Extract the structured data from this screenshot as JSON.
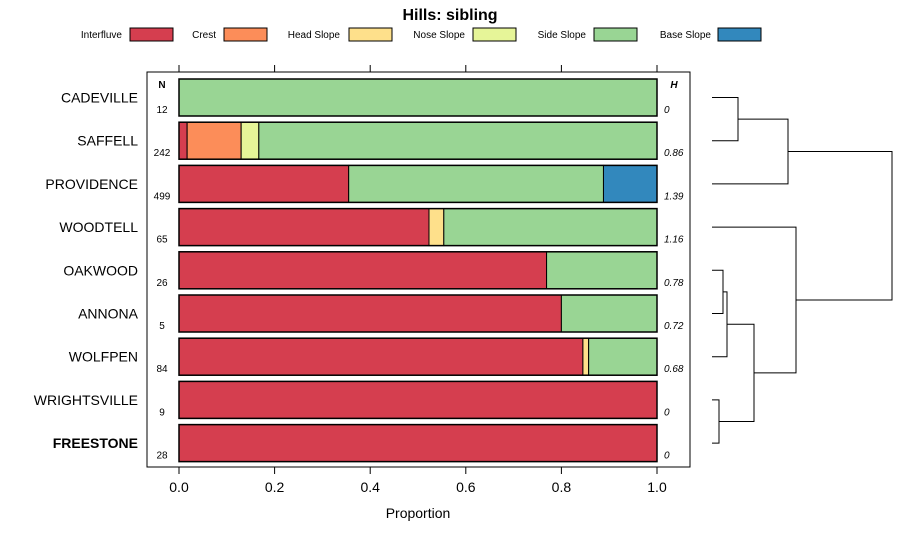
{
  "chart_data": {
    "type": "bar",
    "orientation": "horizontal",
    "stacked": true,
    "title": "Hills: sibling",
    "xlabel": "Proportion",
    "ylabel": "",
    "xlim": [
      0,
      1
    ],
    "xticks": [
      "0.0",
      "0.2",
      "0.4",
      "0.6",
      "0.8",
      "1.0"
    ],
    "n_header": "N",
    "h_header": "H",
    "legend_position": "top",
    "legend": [
      {
        "name": "Interfluve",
        "color": "#d53e4f"
      },
      {
        "name": "Crest",
        "color": "#fc8d59"
      },
      {
        "name": "Head Slope",
        "color": "#fee08b"
      },
      {
        "name": "Nose Slope",
        "color": "#e6f598"
      },
      {
        "name": "Side Slope",
        "color": "#99d594"
      },
      {
        "name": "Base Slope",
        "color": "#3288bd"
      }
    ],
    "categories": [
      {
        "label": "CADEVILLE",
        "n": "12",
        "h": "0",
        "bold": false,
        "values": [
          0,
          0,
          0,
          0,
          1.0,
          0
        ]
      },
      {
        "label": "SAFFELL",
        "n": "242",
        "h": "0.86",
        "bold": false,
        "values": [
          0.017,
          0.113,
          0,
          0.037,
          0.833,
          0
        ]
      },
      {
        "label": "PROVIDENCE",
        "n": "499",
        "h": "1.39",
        "bold": false,
        "values": [
          0.355,
          0,
          0,
          0,
          0.533,
          0.112
        ]
      },
      {
        "label": "WOODTELL",
        "n": "65",
        "h": "1.16",
        "bold": false,
        "values": [
          0.523,
          0,
          0.031,
          0,
          0.446,
          0
        ]
      },
      {
        "label": "OAKWOOD",
        "n": "26",
        "h": "0.78",
        "bold": false,
        "values": [
          0.769,
          0,
          0,
          0,
          0.231,
          0
        ]
      },
      {
        "label": "ANNONA",
        "n": "5",
        "h": "0.72",
        "bold": false,
        "values": [
          0.8,
          0,
          0,
          0,
          0.2,
          0
        ]
      },
      {
        "label": "WOLFPEN",
        "n": "84",
        "h": "0.68",
        "bold": false,
        "values": [
          0.845,
          0,
          0.012,
          0,
          0.143,
          0
        ]
      },
      {
        "label": "WRIGHTSVILLE",
        "n": "9",
        "h": "0",
        "bold": false,
        "values": [
          1.0,
          0,
          0,
          0,
          0,
          0
        ]
      },
      {
        "label": "FREESTONE",
        "n": "28",
        "h": "0",
        "bold": true,
        "values": [
          1.0,
          0,
          0,
          0,
          0,
          0
        ]
      }
    ],
    "dendrogram": {
      "merges": [
        {
          "left": "CADEVILLE",
          "right": "SAFFELL"
        },
        {
          "left": "CADEVILLE+SAFFELL",
          "right": "PROVIDENCE"
        },
        {
          "left": "OAKWOOD",
          "right": "ANNONA"
        },
        {
          "left": "OAKWOOD+ANNONA",
          "right": "WOLFPEN"
        },
        {
          "left": "WRIGHTSVILLE",
          "right": "FREESTONE"
        },
        {
          "left": "OAKWOOD+ANNONA+WOLFPEN",
          "right": "WRIGHTSVILLE+FREESTONE"
        },
        {
          "left": "WOODTELL",
          "right": "OAKWOOD+ANNONA+WOLFPEN+WRIGHTSVILLE+FREESTONE"
        },
        {
          "left": "CADEVILLE+SAFFELL+PROVIDENCE",
          "right": "WOODTELL+OAKWOOD+ANNONA+WOLFPEN+WRIGHTSVILLE+FREESTONE"
        }
      ]
    }
  }
}
